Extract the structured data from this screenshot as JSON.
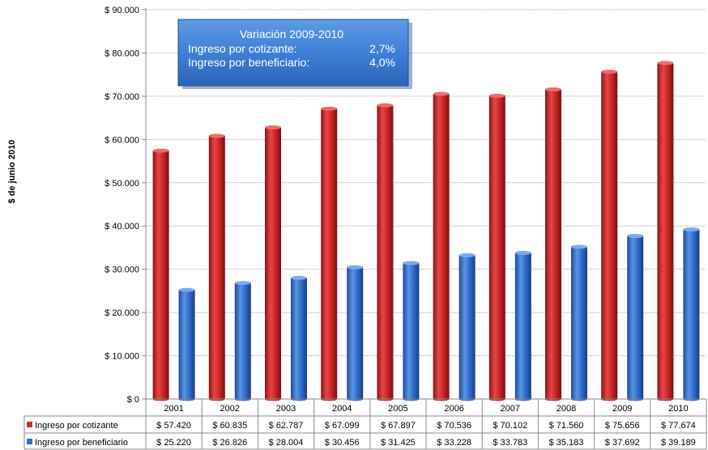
{
  "chart_data": {
    "type": "bar",
    "ylabel": "$ de junio 2010",
    "ylim": [
      0,
      90000
    ],
    "yticks": [
      0,
      10000,
      20000,
      30000,
      40000,
      50000,
      60000,
      70000,
      80000,
      90000
    ],
    "ytick_labels": [
      "$ 0",
      "$ 10.000",
      "$ 20.000",
      "$ 30.000",
      "$ 40.000",
      "$ 50.000",
      "$ 60.000",
      "$ 70.000",
      "$ 80.000",
      "$ 90.000"
    ],
    "grid": true,
    "categories": [
      "2001",
      "2002",
      "2003",
      "2004",
      "2005",
      "2006",
      "2007",
      "2008",
      "2009",
      "2010"
    ],
    "series": [
      {
        "name": "Ingreso por cotizante",
        "color": "#d42a2a",
        "values": [
          57420,
          60835,
          62787,
          67099,
          67897,
          70536,
          70102,
          71560,
          75656,
          77674
        ],
        "labels": [
          "$ 57.420",
          "$ 60.835",
          "$ 62.787",
          "$ 67.099",
          "$ 67.897",
          "$ 70.536",
          "$ 70.102",
          "$ 71.560",
          "$ 75.656",
          "$ 77.674"
        ]
      },
      {
        "name": "Ingreso por beneficiario",
        "color": "#2f6fd0",
        "values": [
          25220,
          26826,
          28004,
          30456,
          31425,
          33228,
          33783,
          35183,
          37692,
          39189
        ],
        "labels": [
          "$ 25.220",
          "$ 26.826",
          "$ 28.004",
          "$ 30.456",
          "$ 31.425",
          "$ 33.228",
          "$ 33.783",
          "$ 35.183",
          "$ 37.692",
          "$ 39.189"
        ]
      }
    ],
    "data_table": true,
    "annotation": {
      "title": "Variación 2009-2010",
      "rows": [
        {
          "label": "Ingreso por cotizante:",
          "value": "2,7%"
        },
        {
          "label": "Ingreso por beneficiario:",
          "value": "4,0%"
        }
      ]
    }
  }
}
